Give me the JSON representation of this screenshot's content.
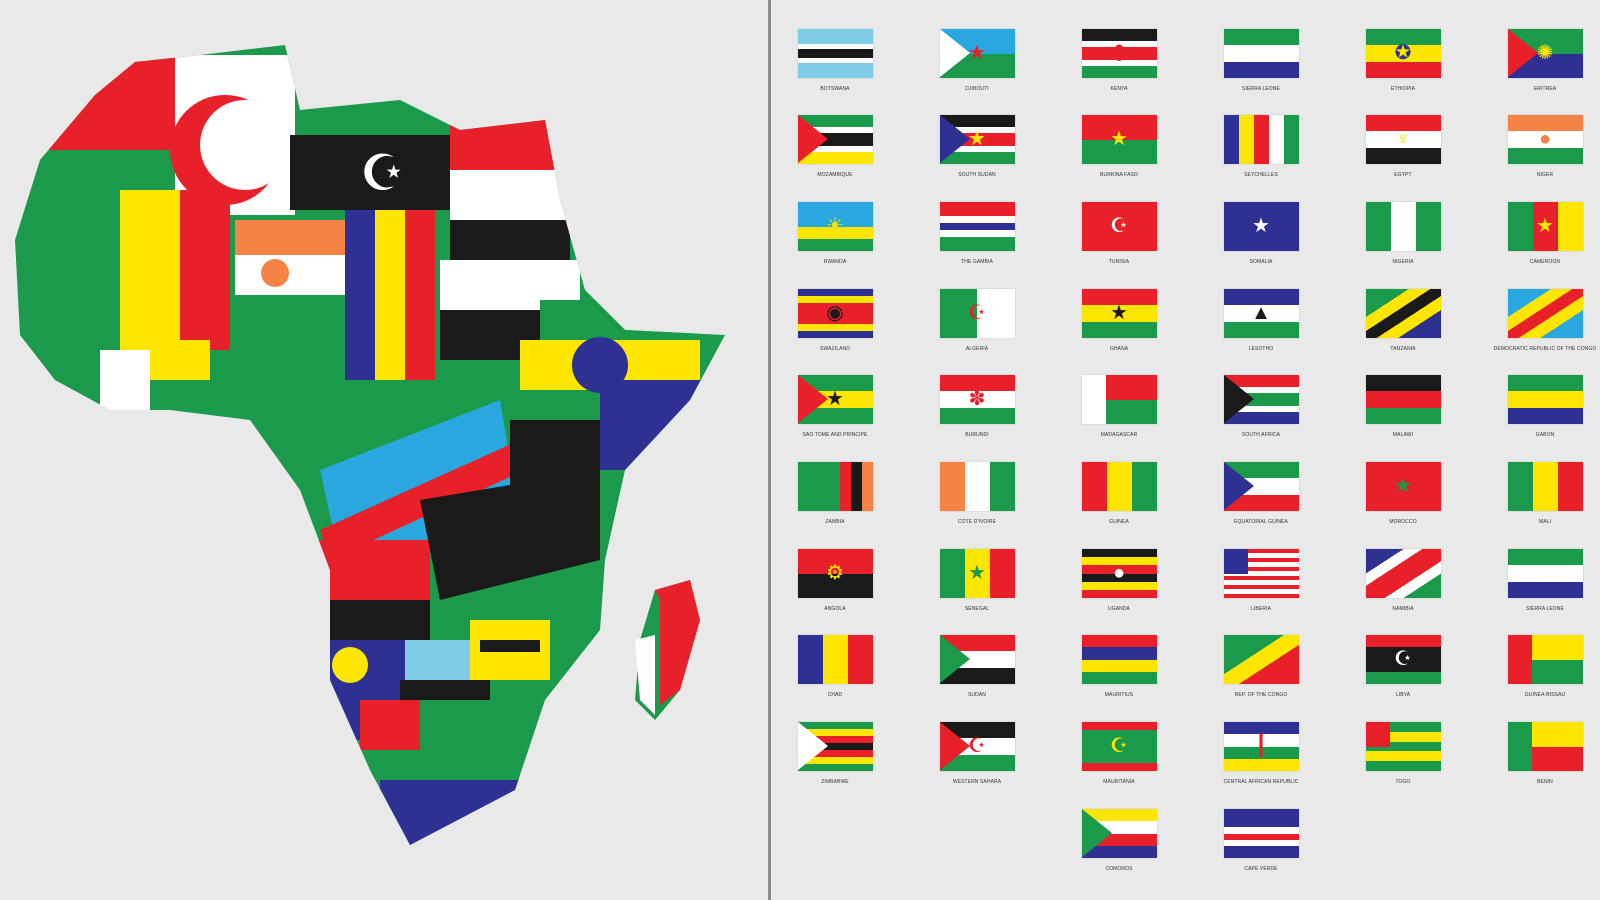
{
  "colors": {
    "G": "#1a9a4a",
    "R": "#e8202a",
    "Y": "#ffe600",
    "K": "#1a1a1a",
    "W": "#ffffff",
    "B": "#2e3192",
    "L": "#7fcce8",
    "O": "#f58345",
    "S": "#29a8e0"
  },
  "flags": [
    {
      "label": "Botswana",
      "d": "h",
      "c": "LLLWKKWLLL"
    },
    {
      "label": "Djibouti",
      "d": "h",
      "c": "SG",
      "tri": "W",
      "sym": "★",
      "sc": "R"
    },
    {
      "label": "Kenya",
      "d": "h",
      "c": "KKWRRWGG",
      "sym": "⬮",
      "sc": "R"
    },
    {
      "label": "Sierra Leone",
      "d": "h",
      "c": "GWB"
    },
    {
      "label": "Ethiopia",
      "d": "h",
      "c": "GYR",
      "sym": "✪",
      "sc": "B"
    },
    {
      "label": "Eritrea",
      "d": "h",
      "c": "GB",
      "tri": "R",
      "sym": "✺",
      "sc": "Y"
    },
    {
      "label": "Mozambique",
      "d": "h",
      "c": "GGWKKWYY",
      "tri": "R"
    },
    {
      "label": "South Sudan",
      "d": "h",
      "c": "KKWRRWGG",
      "tri": "B",
      "sym": "★",
      "sc": "Y"
    },
    {
      "label": "Burkina Faso",
      "d": "h",
      "c": "RG",
      "sym": "★",
      "sc": "Y"
    },
    {
      "label": "Seychelles",
      "d": "v",
      "c": "BYRWG"
    },
    {
      "label": "Egypt",
      "d": "h",
      "c": "RWK",
      "sym": "♆",
      "sc": "Y"
    },
    {
      "label": "Niger",
      "d": "h",
      "c": "OWG",
      "sym": "●",
      "sc": "O"
    },
    {
      "label": "Rwanda",
      "d": "h",
      "c": "SSYG",
      "sym": "☀",
      "sc": "Y"
    },
    {
      "label": "The Gambia",
      "d": "h",
      "c": "RRWBWGG"
    },
    {
      "label": "Tunisia",
      "d": "h",
      "c": "R",
      "sym": "☪",
      "sc": "W"
    },
    {
      "label": "Somalia",
      "d": "h",
      "c": "B",
      "sym": "★",
      "sc": "W"
    },
    {
      "label": "Nigeria",
      "d": "v",
      "c": "GWG"
    },
    {
      "label": "Cameroon",
      "d": "v",
      "c": "GRY",
      "sym": "★",
      "sc": "Y"
    },
    {
      "label": "Swaziland",
      "d": "h",
      "c": "BYRRRYB",
      "sym": "◉",
      "sc": "K"
    },
    {
      "label": "Algeria",
      "d": "v",
      "c": "GW",
      "sym": "☪",
      "sc": "R"
    },
    {
      "label": "Ghana",
      "d": "h",
      "c": "RYG",
      "sym": "★",
      "sc": "K"
    },
    {
      "label": "Lesotho",
      "d": "h",
      "c": "BWG",
      "sym": "▲",
      "sc": "K"
    },
    {
      "label": "Tanzania",
      "d": "diag",
      "c": "GGYKYBB"
    },
    {
      "label": "Democratic Republic of the Congo",
      "d": "diag",
      "c": "SSYRYSS",
      "canton": "",
      "sym": "",
      "sc": "Y"
    },
    {
      "label": "Sao Tome and Principe",
      "d": "h",
      "c": "GYG",
      "tri": "R",
      "sym": "★",
      "sc": "K"
    },
    {
      "label": "Burundi",
      "d": "h",
      "c": "RWG",
      "sym": "✽",
      "sc": "R"
    },
    {
      "label": "Madagascar",
      "d": "h",
      "c": "RG",
      "hoist": "W"
    },
    {
      "label": "South Africa",
      "d": "h",
      "c": "RRWGGWBB",
      "tri": "K"
    },
    {
      "label": "Malawi",
      "d": "h",
      "c": "KRG"
    },
    {
      "label": "Gabon",
      "d": "h",
      "c": "GYB"
    },
    {
      "label": "Zambia",
      "d": "v",
      "c": "GGGGRKO"
    },
    {
      "label": "Cote D'Ivoire",
      "d": "v",
      "c": "OWG"
    },
    {
      "label": "Guinea",
      "d": "v",
      "c": "RYG"
    },
    {
      "label": "Equatorial Guinea",
      "d": "h",
      "c": "GWR",
      "tri": "B"
    },
    {
      "label": "Morocco",
      "d": "h",
      "c": "R",
      "sym": "★",
      "sc": "G"
    },
    {
      "label": "Mali",
      "d": "v",
      "c": "GYR"
    },
    {
      "label": "Angola",
      "d": "h",
      "c": "RK",
      "sym": "⚙",
      "sc": "Y"
    },
    {
      "label": "Senegal",
      "d": "v",
      "c": "GYR",
      "sym": "★",
      "sc": "G"
    },
    {
      "label": "Uganda",
      "d": "h",
      "c": "KYRKYR",
      "sym": "●",
      "sc": "W"
    },
    {
      "label": "Liberia",
      "d": "h",
      "c": "RWRWRWRWRWR",
      "canton": "B"
    },
    {
      "label": "Namibia",
      "d": "diag",
      "c": "BBWRRWGG",
      "sym": "",
      "sc": "Y"
    },
    {
      "label": "Sierra Leone",
      "d": "h",
      "c": "GWB"
    },
    {
      "label": "Chad",
      "d": "v",
      "c": "BYR"
    },
    {
      "label": "Sudan",
      "d": "h",
      "c": "RWK",
      "tri": "G"
    },
    {
      "label": "Mauritius",
      "d": "h",
      "c": "RBYG"
    },
    {
      "label": "Rep. of the Congo",
      "d": "diag",
      "c": "GGYRR"
    },
    {
      "label": "Libya",
      "d": "h",
      "c": "RKKG",
      "sym": "☪",
      "sc": "W"
    },
    {
      "label": "Guinea-Bissau",
      "d": "h",
      "c": "YG",
      "hoist": "R",
      "sym": "",
      "sc": "K"
    },
    {
      "label": "Zimbabwe",
      "d": "h",
      "c": "GYRKRYG",
      "tri": "W"
    },
    {
      "label": "Western Sahara",
      "d": "h",
      "c": "KWG",
      "tri": "R",
      "sym": "☪",
      "sc": "R"
    },
    {
      "label": "Mauritania",
      "d": "h",
      "c": "RGGGGR",
      "sym": "☪",
      "sc": "Y"
    },
    {
      "label": "Central African Republic",
      "d": "h",
      "c": "BWGY",
      "sym": "┃",
      "sc": "R"
    },
    {
      "label": "Togo",
      "d": "h",
      "c": "GYGYG",
      "canton": "R"
    },
    {
      "label": "Benin",
      "d": "h",
      "c": "YR",
      "hoist": "G"
    },
    {
      "label": "Comoros",
      "d": "h",
      "c": "YWRB",
      "tri": "G",
      "sym": "",
      "sc": "W"
    },
    {
      "label": "Cape Verde",
      "d": "h",
      "c": "BBBWRWBB",
      "sym": "",
      "sc": "Y"
    }
  ]
}
